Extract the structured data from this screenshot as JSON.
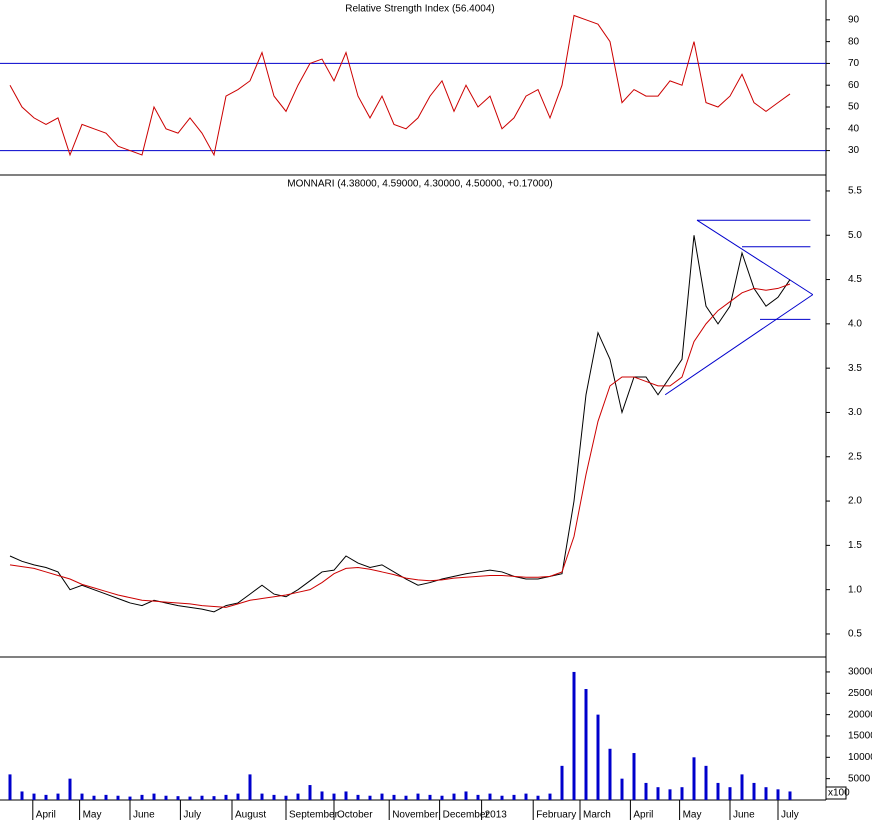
{
  "chart_data": [
    {
      "type": "line",
      "title": "Relative Strength Index (56.4004)",
      "x": [
        0,
        1,
        2,
        3,
        4,
        5,
        6,
        7,
        8,
        9,
        10,
        11,
        12,
        13,
        14,
        15,
        16,
        17,
        18,
        19,
        20,
        21,
        22,
        23,
        24,
        25,
        26,
        27,
        28,
        29,
        30,
        31,
        32,
        33,
        34,
        35,
        36,
        37,
        38,
        39,
        40,
        41,
        42,
        43,
        44,
        45,
        46,
        47,
        48,
        49,
        50,
        51,
        52,
        53,
        54,
        55,
        56,
        57,
        58,
        59,
        60,
        61,
        62,
        63,
        64,
        65
      ],
      "xlim": [
        0,
        67.5
      ],
      "ylim": [
        18.8,
        99.1
      ],
      "yticks": [
        30,
        40,
        50,
        60,
        70,
        80,
        90
      ],
      "hlines": [
        70,
        30
      ],
      "hline_color": "#0000cc",
      "series": [
        {
          "color": "#cc0000",
          "values": [
            60,
            50,
            45,
            42,
            45,
            28,
            42,
            40,
            38,
            32,
            30,
            28,
            50,
            40,
            38,
            45,
            38,
            28,
            55,
            58,
            62,
            75,
            55,
            48,
            60,
            70,
            72,
            62,
            75,
            55,
            45,
            55,
            42,
            40,
            45,
            55,
            62,
            48,
            60,
            50,
            55,
            40,
            45,
            55,
            58,
            45,
            60,
            92,
            90,
            88,
            80,
            52,
            58,
            55,
            55,
            62,
            60,
            80,
            52,
            50,
            55,
            65,
            52,
            48,
            52,
            56
          ]
        }
      ]
    },
    {
      "type": "line",
      "title": "MONNARI (4.38000, 4.59000, 4.30000, 4.50000, +0.17000)",
      "x": [
        0,
        1,
        2,
        3,
        4,
        5,
        6,
        7,
        8,
        9,
        10,
        11,
        12,
        13,
        14,
        15,
        16,
        17,
        18,
        19,
        20,
        21,
        22,
        23,
        24,
        25,
        26,
        27,
        28,
        29,
        30,
        31,
        32,
        33,
        34,
        35,
        36,
        37,
        38,
        39,
        40,
        41,
        42,
        43,
        44,
        45,
        46,
        47,
        48,
        49,
        50,
        51,
        52,
        53,
        54,
        55,
        56,
        57,
        58,
        59,
        60,
        61,
        62,
        63,
        64,
        65
      ],
      "xlim": [
        0,
        67.5
      ],
      "ylim": [
        0.24,
        5.68
      ],
      "yticks": [
        {
          "value": 0.5,
          "label": "0.5"
        },
        {
          "value": 1,
          "label": "1.0"
        },
        1.5,
        {
          "value": 2,
          "label": "2.0"
        },
        2.5,
        {
          "value": 3,
          "label": "3.0"
        },
        3.5,
        {
          "value": 4,
          "label": "4.0"
        },
        4.5,
        {
          "value": 5,
          "label": "5.0"
        },
        5.5
      ],
      "series": [
        {
          "color": "#000000",
          "values": [
            1.38,
            1.32,
            1.28,
            1.25,
            1.2,
            1.0,
            1.05,
            1.0,
            0.95,
            0.9,
            0.85,
            0.82,
            0.88,
            0.85,
            0.82,
            0.8,
            0.78,
            0.75,
            0.82,
            0.85,
            0.95,
            1.05,
            0.95,
            0.92,
            1.0,
            1.1,
            1.2,
            1.22,
            1.38,
            1.3,
            1.25,
            1.28,
            1.2,
            1.12,
            1.05,
            1.08,
            1.12,
            1.15,
            1.18,
            1.2,
            1.22,
            1.2,
            1.15,
            1.12,
            1.12,
            1.15,
            1.18,
            2.0,
            3.2,
            3.9,
            3.6,
            3.0,
            3.4,
            3.4,
            3.2,
            3.4,
            3.6,
            5.0,
            4.2,
            4.0,
            4.2,
            4.8,
            4.4,
            4.2,
            4.3,
            4.5
          ]
        },
        {
          "color": "#cc0000",
          "values": [
            1.28,
            1.26,
            1.24,
            1.2,
            1.16,
            1.12,
            1.06,
            1.02,
            0.98,
            0.94,
            0.91,
            0.88,
            0.87,
            0.86,
            0.85,
            0.84,
            0.82,
            0.81,
            0.8,
            0.84,
            0.88,
            0.9,
            0.92,
            0.94,
            0.97,
            1.0,
            1.08,
            1.18,
            1.24,
            1.25,
            1.23,
            1.2,
            1.17,
            1.13,
            1.11,
            1.1,
            1.11,
            1.13,
            1.14,
            1.15,
            1.16,
            1.16,
            1.15,
            1.14,
            1.14,
            1.15,
            1.2,
            1.6,
            2.3,
            2.9,
            3.3,
            3.4,
            3.4,
            3.35,
            3.3,
            3.3,
            3.4,
            3.8,
            4.0,
            4.15,
            4.25,
            4.35,
            4.4,
            4.38,
            4.4,
            4.45
          ]
        }
      ],
      "trendline_color": "#0000cc",
      "trendlines": [
        [
          57.25,
          5.17,
          66.7,
          5.17
        ],
        [
          61,
          4.87,
          66.7,
          4.87
        ],
        [
          62.5,
          4.05,
          66.7,
          4.05
        ],
        [
          57.25,
          5.17,
          66.9,
          4.33
        ],
        [
          54.6,
          3.2,
          66.9,
          4.33
        ]
      ]
    },
    {
      "type": "bar",
      "unit_label": "x100",
      "x": [
        0,
        1,
        2,
        3,
        4,
        5,
        6,
        7,
        8,
        9,
        10,
        11,
        12,
        13,
        14,
        15,
        16,
        17,
        18,
        19,
        20,
        21,
        22,
        23,
        24,
        25,
        26,
        27,
        28,
        29,
        30,
        31,
        32,
        33,
        34,
        35,
        36,
        37,
        38,
        39,
        40,
        41,
        42,
        43,
        44,
        45,
        46,
        47,
        48,
        49,
        50,
        51,
        52,
        53,
        54,
        55,
        56,
        57,
        58,
        59,
        60,
        61,
        62,
        63,
        64,
        65
      ],
      "xlim": [
        0,
        67.5
      ],
      "ylim": [
        0,
        33500
      ],
      "yticks": [
        5000,
        10000,
        15000,
        20000,
        25000,
        30000
      ],
      "color": "#0000cc",
      "values": [
        6000,
        2000,
        1500,
        1200,
        1500,
        5000,
        1500,
        1000,
        1200,
        1000,
        800,
        1200,
        1500,
        1000,
        900,
        800,
        1000,
        900,
        1200,
        1500,
        6000,
        1500,
        1200,
        1000,
        1500,
        3500,
        2000,
        1500,
        2000,
        1200,
        1000,
        1500,
        1200,
        1000,
        1500,
        1200,
        1000,
        1500,
        2000,
        1200,
        1500,
        1000,
        1200,
        1500,
        1000,
        1500,
        8000,
        30000,
        26000,
        20000,
        12000,
        5000,
        11000,
        4000,
        3000,
        2500,
        3000,
        10000,
        8000,
        4000,
        3000,
        6000,
        4000,
        3000,
        2500,
        2000
      ],
      "xticks": [
        {
          "value": 1.9,
          "label": "April"
        },
        {
          "value": 5.8,
          "label": "May"
        },
        {
          "value": 10,
          "label": "June"
        },
        {
          "value": 14.2,
          "label": "July"
        },
        {
          "value": 18.5,
          "label": "August"
        },
        {
          "value": 23,
          "label": "September"
        },
        {
          "value": 27,
          "label": "October"
        },
        {
          "value": 31.6,
          "label": "November"
        },
        {
          "value": 35.8,
          "label": "December"
        },
        {
          "value": 39.3,
          "label": "2013"
        },
        {
          "value": 43.6,
          "label": "February"
        },
        {
          "value": 47.5,
          "label": "March"
        },
        {
          "value": 51.7,
          "label": "April"
        },
        {
          "value": 55.8,
          "label": "May"
        },
        {
          "value": 60,
          "label": "June"
        },
        {
          "value": 64,
          "label": "July"
        }
      ]
    }
  ]
}
